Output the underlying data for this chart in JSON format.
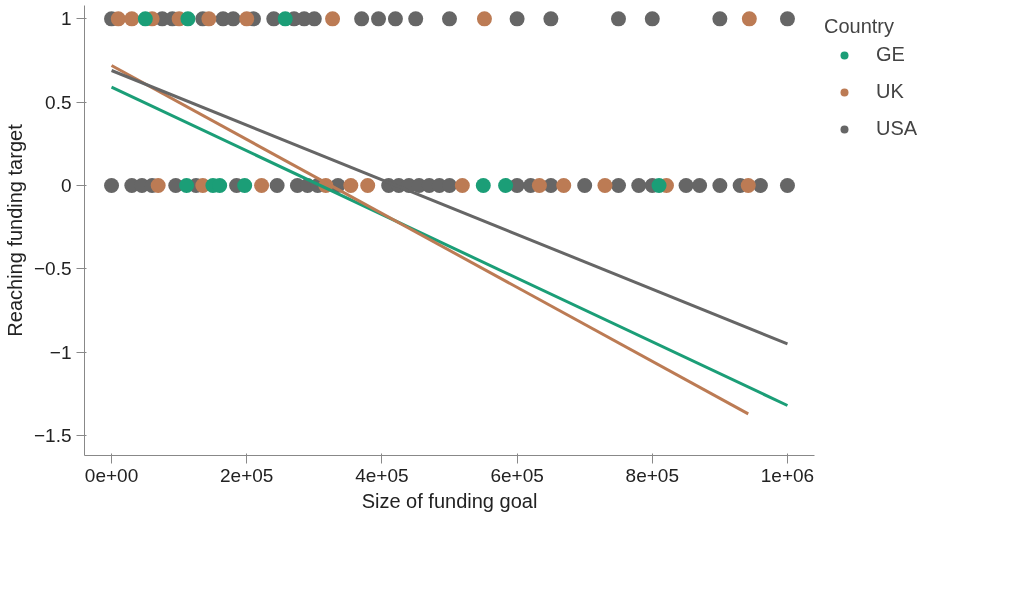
{
  "chart_data": {
    "type": "scatter",
    "xlabel": "Size of funding goal",
    "ylabel": "Reaching funding target",
    "legend_title": "Country",
    "legend": "right",
    "grid": false,
    "marker": "circle",
    "xlim": [
      -40000,
      1040000
    ],
    "ylim": [
      -1.62,
      1.08
    ],
    "xticks": [
      {
        "value": 0,
        "label": "0e+00"
      },
      {
        "value": 200000,
        "label": "2e+05"
      },
      {
        "value": 400000,
        "label": "4e+05"
      },
      {
        "value": 600000,
        "label": "6e+05"
      },
      {
        "value": 800000,
        "label": "8e+05"
      },
      {
        "value": 1000000,
        "label": "1e+06"
      }
    ],
    "yticks": [
      -1.5,
      -1,
      -0.5,
      0,
      0.5,
      1
    ],
    "series": [
      {
        "name": "USA",
        "color": "#666666",
        "x": [
          0,
          75000,
          90000,
          135000,
          165000,
          180000,
          210000,
          240000,
          270000,
          285000,
          300000,
          370000,
          395000,
          420000,
          450000,
          500000,
          600000,
          650000,
          750000,
          800000,
          900000,
          1000000,
          0,
          30000,
          45000,
          60000,
          95000,
          125000,
          185000,
          245000,
          275000,
          290000,
          305000,
          335000,
          410000,
          425000,
          440000,
          455000,
          470000,
          485000,
          500000,
          600000,
          620000,
          650000,
          700000,
          750000,
          780000,
          800000,
          850000,
          870000,
          900000,
          930000,
          960000,
          1000000
        ],
        "values": [
          1,
          1,
          1,
          1,
          1,
          1,
          1,
          1,
          1,
          1,
          1,
          1,
          1,
          1,
          1,
          1,
          1,
          1,
          1,
          1,
          1,
          1,
          0,
          0,
          0,
          0,
          0,
          0,
          0,
          0,
          0,
          0,
          0,
          0,
          0,
          0,
          0,
          0,
          0,
          0,
          0,
          0,
          0,
          0,
          0,
          0,
          0,
          0,
          0,
          0,
          0,
          0,
          0,
          0
        ]
      },
      {
        "name": "UK",
        "color": "#bc7b54",
        "x": [
          10000,
          30000,
          60000,
          100000,
          144000,
          200000,
          327000,
          551700,
          943600,
          69000,
          135000,
          222000,
          317000,
          354000,
          379000,
          519000,
          633000,
          669000,
          730000,
          821000,
          942000
        ],
        "values": [
          1,
          1,
          1,
          1,
          1,
          1,
          1,
          1,
          1,
          0,
          0,
          0,
          0,
          0,
          0,
          0,
          0,
          0,
          0,
          0,
          0
        ]
      },
      {
        "name": "GE",
        "color": "#1b9e77",
        "x": [
          50000,
          113000,
          257000,
          111000,
          150000,
          160000,
          197000,
          550000,
          583000,
          810000
        ],
        "values": [
          1,
          1,
          1,
          0,
          0,
          0,
          0,
          0,
          0,
          0
        ]
      },
      {
        "color": "#1b9e77",
        "type": "line",
        "marker": "none",
        "x": [
          0,
          1000000
        ],
        "values": [
          0.59,
          -1.32
        ]
      },
      {
        "color": "#bc7b54",
        "type": "line",
        "marker": "none",
        "x": [
          0,
          942000
        ],
        "values": [
          0.72,
          -1.37
        ]
      },
      {
        "color": "#666666",
        "type": "line",
        "marker": "none",
        "x": [
          0,
          1000000
        ],
        "values": [
          0.69,
          -0.95
        ]
      }
    ]
  }
}
